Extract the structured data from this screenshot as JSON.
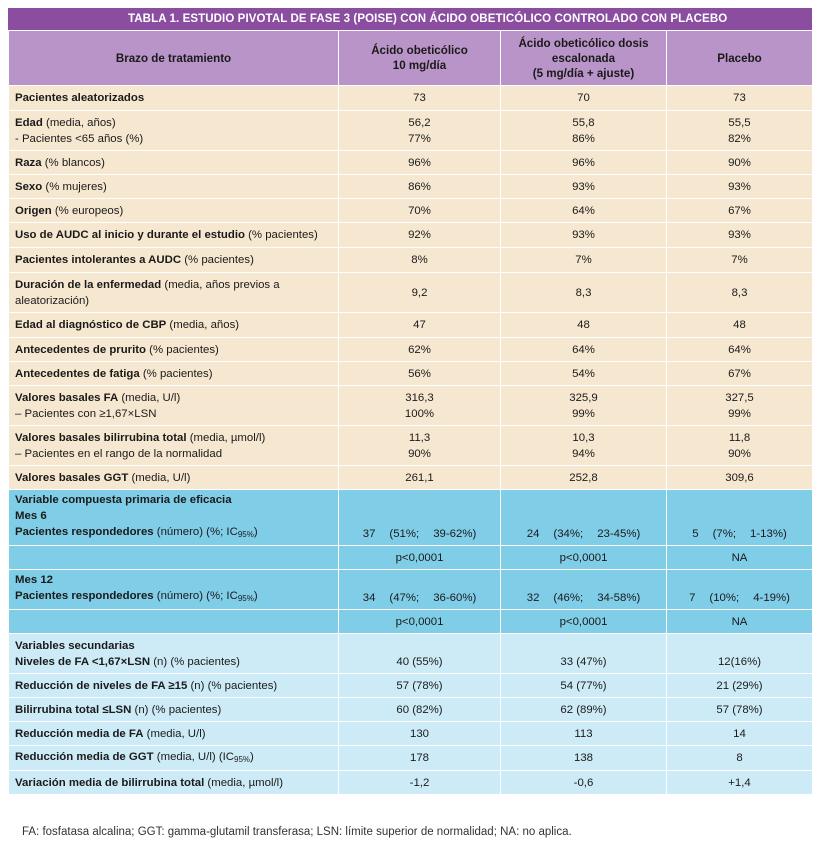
{
  "title": "TABLA 1. ESTUDIO PIVOTAL DE FASE 3 (POISE) CON ÁCIDO OBETICÓLICO CONTROLADO CON PLACEBO",
  "headers": {
    "c1": "Brazo de tratamiento",
    "c2a": "Ácido obeticólico",
    "c2b": "10 mg/día",
    "c3a": "Ácido obeticólico dosis",
    "c3b": "escalonada",
    "c3c": "(5 mg/día + ajuste)",
    "c4": "Placebo"
  },
  "baseline": [
    {
      "bold": "Pacientes aleatorizados",
      "rest": "",
      "v": [
        "73",
        "70",
        "73"
      ]
    },
    {
      "bold": "Edad",
      "rest": " (media, años)",
      "sub": "-    Pacientes <65 años (%)",
      "v": [
        "56,2",
        "55,8",
        "55,5"
      ],
      "v2": [
        "77%",
        "86%",
        "82%"
      ]
    },
    {
      "bold": "Raza",
      "rest": " (% blancos)",
      "v": [
        "96%",
        "96%",
        "90%"
      ]
    },
    {
      "bold": "Sexo",
      "rest": " (% mujeres)",
      "v": [
        "86%",
        "93%",
        "93%"
      ]
    },
    {
      "bold": "Origen",
      "rest": " (% europeos)",
      "v": [
        "70%",
        "64%",
        "67%"
      ]
    },
    {
      "bold": "Uso de AUDC al inicio y durante el estudio",
      "rest": " (% pacientes)",
      "v": [
        "92%",
        "93%",
        "93%"
      ]
    },
    {
      "bold": "Pacientes intolerantes a AUDC",
      "rest": " (% pacientes)",
      "v": [
        "8%",
        "7%",
        "7%"
      ]
    },
    {
      "bold": "Duración de la enfermedad",
      "rest": " (media, años previos a",
      "sub": "aleatorización)",
      "v": [
        "9,2",
        "8,3",
        "8,3"
      ]
    },
    {
      "bold": "Edad al diagnóstico de CBP",
      "rest": " (media, años)",
      "v": [
        "47",
        "48",
        "48"
      ]
    },
    {
      "bold": "Antecedentes de prurito",
      "rest": " (% pacientes)",
      "v": [
        "62%",
        "64%",
        "64%"
      ]
    },
    {
      "bold": "Antecedentes de fatiga",
      "rest": " (% pacientes)",
      "v": [
        "56%",
        "54%",
        "67%"
      ]
    },
    {
      "bold": "Valores basales FA",
      "rest": " (media, U/l)",
      "sub": "– Pacientes con ≥1,67×LSN",
      "v": [
        "316,3",
        "325,9",
        "327,5"
      ],
      "v2": [
        "100%",
        "99%",
        "99%"
      ]
    },
    {
      "bold": "Valores basales bilirrubina total",
      "rest": " (media, µmol/l)",
      "sub": "– Pacientes en el rango de la normalidad",
      "v": [
        "11,3",
        "10,3",
        "11,8"
      ],
      "v2": [
        "90%",
        "94%",
        "90%"
      ]
    },
    {
      "bold": "Valores basales GGT",
      "rest": " (media, U/l)",
      "v": [
        "261,1",
        "252,8",
        "309,6"
      ]
    }
  ],
  "efficacy": {
    "header": "Variable compuesta primaria de eficacia",
    "m6": "Mes 6",
    "m12": "Mes 12",
    "resp_bold": "Pacientes respondedores",
    "resp_rest": " (número) (%; IC",
    "ci_sub": "95%",
    "resp_close": ")",
    "m6_vals": [
      [
        "37",
        "(51%;",
        "39-62%)"
      ],
      [
        "24",
        "(34%;",
        "23-45%)"
      ],
      [
        "5",
        "(7%;",
        "1-13%)"
      ]
    ],
    "m6_p": [
      "p<0,0001",
      "p<0,0001",
      "NA"
    ],
    "m12_vals": [
      [
        "34",
        "(47%;",
        "36-60%)"
      ],
      [
        "32",
        "(46%;",
        "34-58%)"
      ],
      [
        "7",
        "(10%;",
        "4-19%)"
      ]
    ],
    "m12_p": [
      "p<0,0001",
      "p<0,0001",
      "NA"
    ]
  },
  "secondary": {
    "header": "Variables secundarias",
    "rows": [
      {
        "bold": "Niveles de FA <1,67×LSN",
        "rest": " (n) (% pacientes)",
        "v": [
          "40 (55%)",
          "33 (47%)",
          "12(16%)"
        ]
      },
      {
        "bold": "Reducción de niveles de FA ≥15",
        "rest": " (n) (% pacientes)",
        "v": [
          "57 (78%)",
          "54 (77%)",
          "21 (29%)"
        ]
      },
      {
        "bold": "Bilirrubina total ≤LSN",
        "rest": " (n) (% pacientes)",
        "v": [
          "60 (82%)",
          "62 (89%)",
          "57 (78%)"
        ]
      },
      {
        "bold": "Reducción media de FA",
        "rest": " (media, U/l)",
        "v": [
          "130",
          "113",
          "14"
        ]
      },
      {
        "bold": "Reducción media de GGT",
        "rest": " (media, U/l) (IC",
        "sub": "95%",
        "close": ")",
        "v": [
          "178",
          "138",
          "8"
        ]
      },
      {
        "bold": "Variación media de bilirrubina total",
        "rest": " (media, µmol/l)",
        "v": [
          "-1,2",
          "-0,6",
          "+1,4"
        ]
      }
    ]
  },
  "footnote": "FA:   fosfatasa alcalina; GGT: gamma-glutamil transferasa; LSN: límite superior de normalidad; NA: no aplica.",
  "colors": {
    "title": "#8a4da0",
    "header": "#b994c8",
    "beige": "#f6e7d0",
    "blue": "#80cde8",
    "lightblue": "#cdebf6"
  }
}
